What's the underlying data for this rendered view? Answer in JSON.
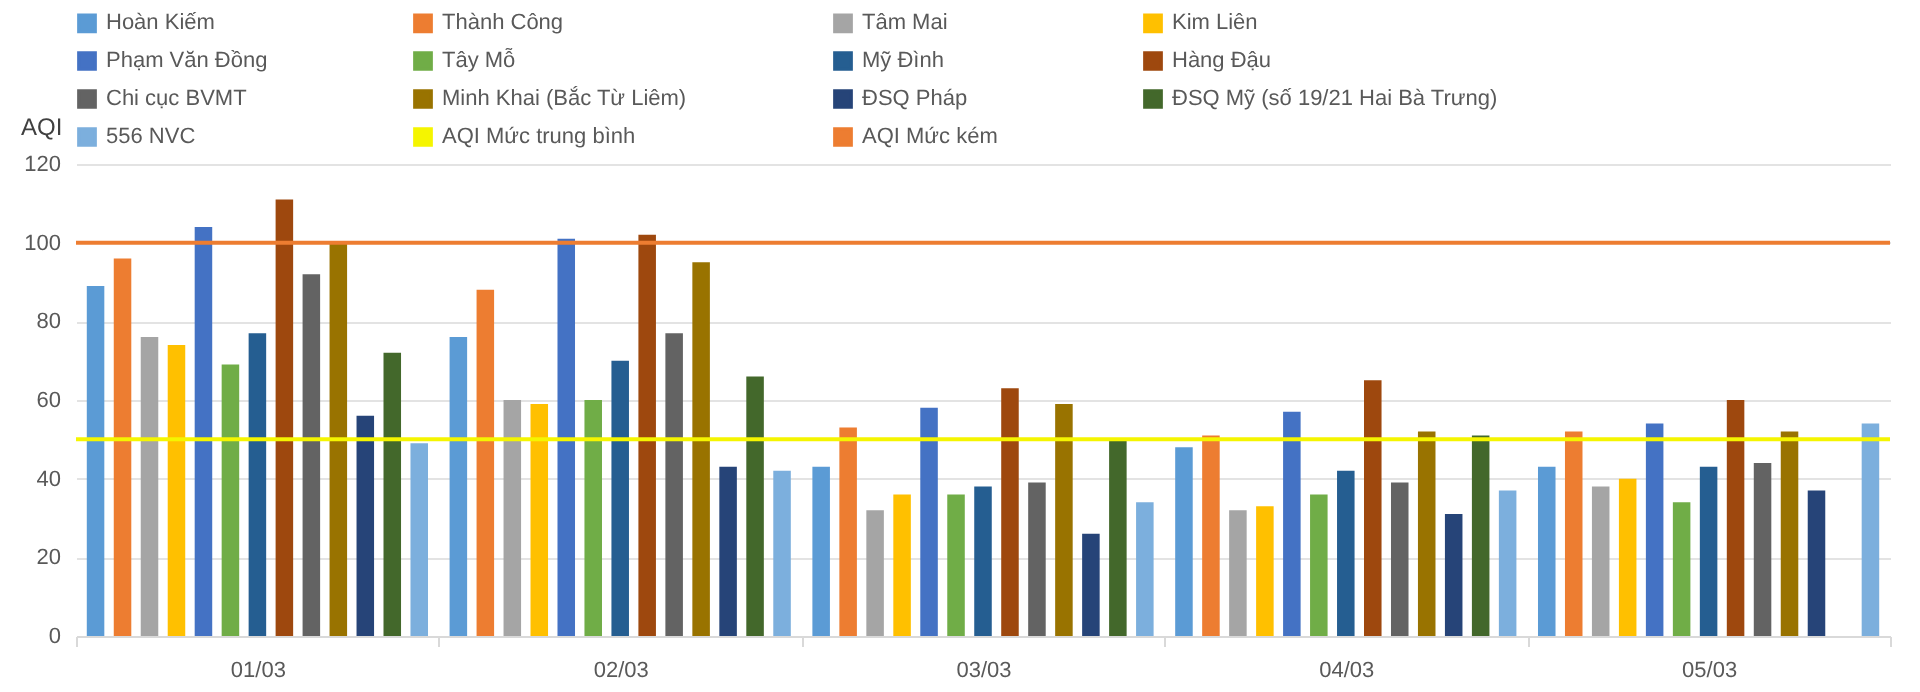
{
  "chart_data": {
    "type": "bar",
    "ylabel": "AQI",
    "categories": [
      "01/03",
      "02/03",
      "03/03",
      "04/03",
      "05/03"
    ],
    "series": [
      {
        "name": "Hoàn Kiếm",
        "color": "#5b9bd5",
        "values": [
          89,
          76,
          43,
          48,
          43
        ]
      },
      {
        "name": "Thành Công",
        "color": "#ed7d31",
        "values": [
          96,
          88,
          53,
          51,
          52
        ]
      },
      {
        "name": "Tâm Mai",
        "color": "#a5a5a5",
        "values": [
          76,
          60,
          32,
          32,
          38
        ]
      },
      {
        "name": "Kim Liên",
        "color": "#ffc000",
        "values": [
          74,
          59,
          36,
          33,
          40
        ]
      },
      {
        "name": "Phạm Văn Đồng",
        "color": "#4472c4",
        "values": [
          104,
          101,
          58,
          57,
          54
        ]
      },
      {
        "name": "Tây Mỗ",
        "color": "#70ad47",
        "values": [
          69,
          60,
          36,
          36,
          34
        ]
      },
      {
        "name": "Mỹ Đình",
        "color": "#255e91",
        "values": [
          77,
          70,
          38,
          42,
          43
        ]
      },
      {
        "name": "Hàng Đậu",
        "color": "#9e480e",
        "values": [
          111,
          102,
          63,
          65,
          60
        ]
      },
      {
        "name": "Chi cục BVMT",
        "color": "#636363",
        "values": [
          92,
          77,
          39,
          39,
          44
        ]
      },
      {
        "name": "Minh Khai (Bắc Từ Liêm)",
        "color": "#997300",
        "values": [
          100,
          95,
          59,
          52,
          52
        ]
      },
      {
        "name": "ĐSQ Pháp",
        "color": "#264478",
        "values": [
          56,
          43,
          26,
          31,
          37
        ]
      },
      {
        "name": "ĐSQ Mỹ (số 19/21 Hai Bà Trưng)",
        "color": "#43682b",
        "values": [
          72,
          66,
          50,
          51,
          null
        ]
      },
      {
        "name": "556 NVC",
        "color": "#7cafdd",
        "values": [
          49,
          42,
          34,
          37,
          54
        ]
      }
    ],
    "ref_lines": [
      {
        "axis": "y",
        "value": 50,
        "label": "AQI Mức trung bình",
        "color": "#f5f500"
      },
      {
        "axis": "y",
        "value": 100,
        "label": "AQI Mức kém",
        "color": "#ed7d31"
      }
    ],
    "ylim": [
      0,
      120
    ],
    "yticks": [
      0,
      20,
      40,
      60,
      80,
      100,
      120
    ],
    "grid": "y",
    "legend": "top"
  }
}
